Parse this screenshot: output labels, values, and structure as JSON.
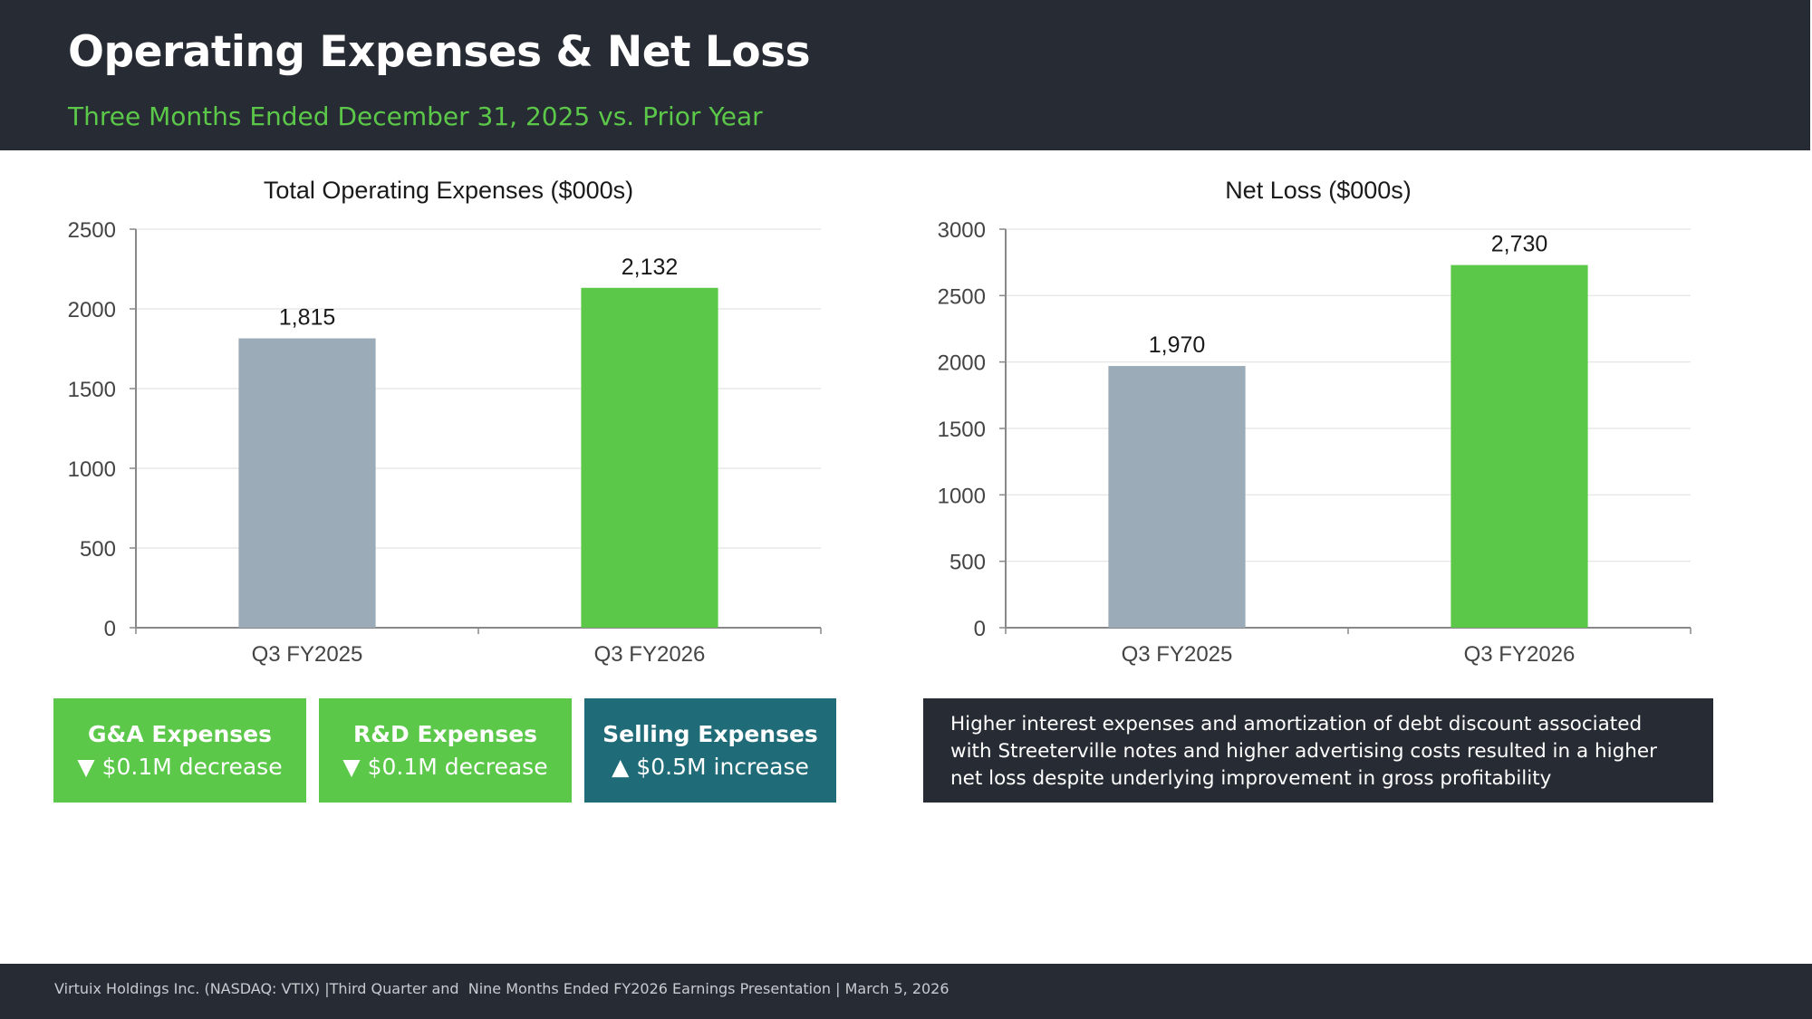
{
  "header": {
    "title": "Operating Expenses & Net Loss",
    "subtitle": "Three Months Ended December 31, 2025 vs. Prior Year"
  },
  "colors": {
    "prior_bar": "#9bacb8",
    "current_bar": "#5cc84a",
    "selling_box": "#1f6b78",
    "dark_panel": "#272b33"
  },
  "chart_data": [
    {
      "type": "bar",
      "title": "Total Operating Expenses ($000s)",
      "categories": [
        "Q3 FY2025",
        "Q3 FY2026"
      ],
      "values": [
        1815,
        2132
      ],
      "data_labels": [
        "1,815",
        "2,132"
      ],
      "yticks": [
        0,
        500,
        1000,
        1500,
        2000,
        2500
      ],
      "ylim": [
        0,
        2500
      ],
      "xlabel": "",
      "ylabel": "",
      "grid": true
    },
    {
      "type": "bar",
      "title": "Net Loss ($000s)",
      "categories": [
        "Q3 FY2025",
        "Q3 FY2026"
      ],
      "values": [
        1970,
        2730
      ],
      "data_labels": [
        "1,970",
        "2,730"
      ],
      "yticks": [
        0,
        500,
        1000,
        1500,
        2000,
        2500,
        3000
      ],
      "ylim": [
        0,
        3000
      ],
      "xlabel": "",
      "ylabel": "",
      "grid": true
    }
  ],
  "callouts": [
    {
      "title": "G&A Expenses",
      "arrow": "▼",
      "detail": "$0.1M decrease"
    },
    {
      "title": "R&D Expenses",
      "arrow": "▼",
      "detail": "$0.1M decrease"
    },
    {
      "title": "Selling Expenses",
      "arrow": "▲",
      "detail": "$0.5M increase"
    }
  ],
  "note": "Higher interest expenses and amortization of debt discount associated with Streeterville notes and higher advertising costs resulted in a higher net loss despite underlying improvement in gross profitability",
  "footer": "Virtuix Holdings Inc. (NASDAQ: VTIX) |Third Quarter and  Nine Months Ended FY2026 Earnings Presentation | March 5, 2026"
}
